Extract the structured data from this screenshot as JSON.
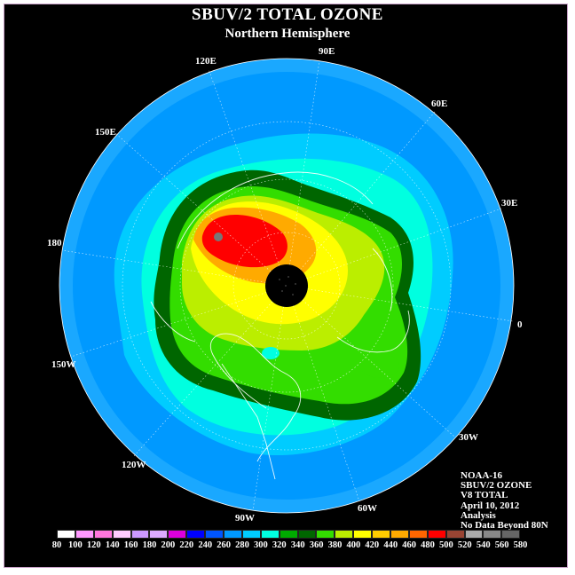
{
  "title": "SBUV/2 TOTAL OZONE",
  "subtitle": "Northern Hemisphere",
  "lon_labels": [
    "90E",
    "60E",
    "30E",
    "0",
    "30W",
    "60W",
    "90W",
    "120W",
    "150W",
    "180",
    "150E",
    "120E"
  ],
  "info_lines": [
    "NOAA-16",
    "SBUV/2 OZONE",
    "V8 TOTAL",
    "April 10, 2012",
    "Analysis",
    "No Data Beyond 80N"
  ],
  "colorbar": {
    "ticks": [
      "80",
      "100",
      "120",
      "140",
      "160",
      "180",
      "200",
      "220",
      "240",
      "260",
      "280",
      "300",
      "320",
      "340",
      "360",
      "380",
      "400",
      "420",
      "440",
      "460",
      "480",
      "500",
      "520",
      "540",
      "560",
      "580"
    ],
    "colors": [
      "#ffffff",
      "#ff99ff",
      "#ff77dd",
      "#ffccff",
      "#cc99ff",
      "#ddaaff",
      "#dd00dd",
      "#0000ff",
      "#0055ff",
      "#0099ff",
      "#00ccff",
      "#00ffe0",
      "#00aa00",
      "#006600",
      "#33dd00",
      "#bbee00",
      "#ffff00",
      "#ffcc00",
      "#ffaa00",
      "#ff6600",
      "#ff0000",
      "#994433",
      "#aaaaaa",
      "#888888",
      "#666666"
    ]
  },
  "map": {
    "projection": "north polar stereographic",
    "no_data_color": "#000000",
    "ozone_regions": [
      {
        "name": "ocean-blue-band",
        "color": "#0099ff",
        "level": 260
      },
      {
        "name": "cyan-band",
        "color": "#00ccff",
        "level": 280
      },
      {
        "name": "aqua-band",
        "color": "#00ffe0",
        "level": 300
      },
      {
        "name": "dark-green-band",
        "color": "#006600",
        "level": 340
      },
      {
        "name": "light-green-band",
        "color": "#33dd00",
        "level": 360
      },
      {
        "name": "yellow-green-band",
        "color": "#bbee00",
        "level": 380
      },
      {
        "name": "yellow-band",
        "color": "#ffff00",
        "level": 400
      },
      {
        "name": "orange-band",
        "color": "#ffaa00",
        "level": 440
      },
      {
        "name": "red-band",
        "color": "#ff0000",
        "level": 480
      }
    ]
  }
}
